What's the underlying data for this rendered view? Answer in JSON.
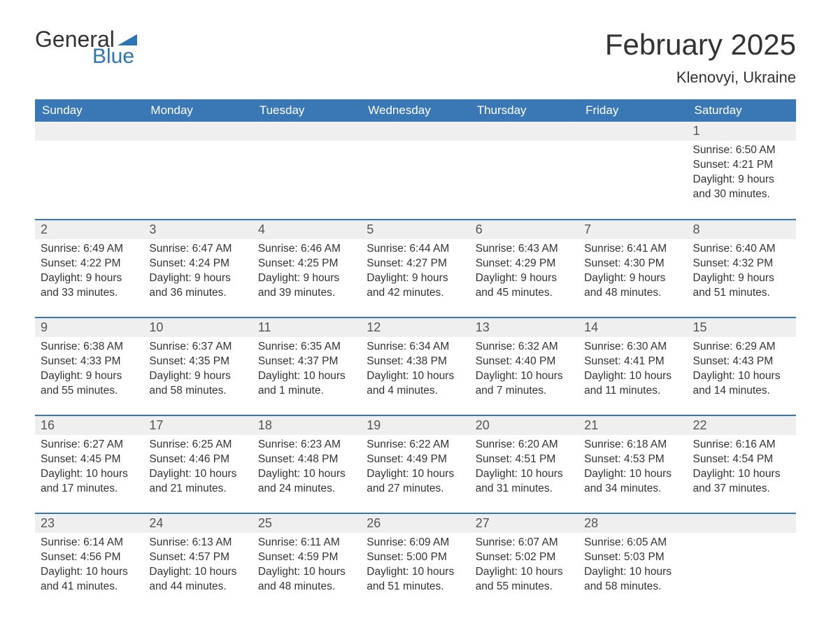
{
  "logo": {
    "text1": "General",
    "text2": "Blue",
    "triangle_color": "#2e75b6"
  },
  "title": "February 2025",
  "location": "Klenovyi, Ukraine",
  "colors": {
    "header_bg": "#3a78b5",
    "header_text": "#ffffff",
    "daynum_bg": "#efefef",
    "row_border": "#3a78b5",
    "body_text": "#333333"
  },
  "weekdays": [
    "Sunday",
    "Monday",
    "Tuesday",
    "Wednesday",
    "Thursday",
    "Friday",
    "Saturday"
  ],
  "weeks": [
    [
      null,
      null,
      null,
      null,
      null,
      null,
      {
        "n": "1",
        "sunrise": "6:50 AM",
        "sunset": "4:21 PM",
        "dl": "9 hours and 30 minutes."
      }
    ],
    [
      {
        "n": "2",
        "sunrise": "6:49 AM",
        "sunset": "4:22 PM",
        "dl": "9 hours and 33 minutes."
      },
      {
        "n": "3",
        "sunrise": "6:47 AM",
        "sunset": "4:24 PM",
        "dl": "9 hours and 36 minutes."
      },
      {
        "n": "4",
        "sunrise": "6:46 AM",
        "sunset": "4:25 PM",
        "dl": "9 hours and 39 minutes."
      },
      {
        "n": "5",
        "sunrise": "6:44 AM",
        "sunset": "4:27 PM",
        "dl": "9 hours and 42 minutes."
      },
      {
        "n": "6",
        "sunrise": "6:43 AM",
        "sunset": "4:29 PM",
        "dl": "9 hours and 45 minutes."
      },
      {
        "n": "7",
        "sunrise": "6:41 AM",
        "sunset": "4:30 PM",
        "dl": "9 hours and 48 minutes."
      },
      {
        "n": "8",
        "sunrise": "6:40 AM",
        "sunset": "4:32 PM",
        "dl": "9 hours and 51 minutes."
      }
    ],
    [
      {
        "n": "9",
        "sunrise": "6:38 AM",
        "sunset": "4:33 PM",
        "dl": "9 hours and 55 minutes."
      },
      {
        "n": "10",
        "sunrise": "6:37 AM",
        "sunset": "4:35 PM",
        "dl": "9 hours and 58 minutes."
      },
      {
        "n": "11",
        "sunrise": "6:35 AM",
        "sunset": "4:37 PM",
        "dl": "10 hours and 1 minute."
      },
      {
        "n": "12",
        "sunrise": "6:34 AM",
        "sunset": "4:38 PM",
        "dl": "10 hours and 4 minutes."
      },
      {
        "n": "13",
        "sunrise": "6:32 AM",
        "sunset": "4:40 PM",
        "dl": "10 hours and 7 minutes."
      },
      {
        "n": "14",
        "sunrise": "6:30 AM",
        "sunset": "4:41 PM",
        "dl": "10 hours and 11 minutes."
      },
      {
        "n": "15",
        "sunrise": "6:29 AM",
        "sunset": "4:43 PM",
        "dl": "10 hours and 14 minutes."
      }
    ],
    [
      {
        "n": "16",
        "sunrise": "6:27 AM",
        "sunset": "4:45 PM",
        "dl": "10 hours and 17 minutes."
      },
      {
        "n": "17",
        "sunrise": "6:25 AM",
        "sunset": "4:46 PM",
        "dl": "10 hours and 21 minutes."
      },
      {
        "n": "18",
        "sunrise": "6:23 AM",
        "sunset": "4:48 PM",
        "dl": "10 hours and 24 minutes."
      },
      {
        "n": "19",
        "sunrise": "6:22 AM",
        "sunset": "4:49 PM",
        "dl": "10 hours and 27 minutes."
      },
      {
        "n": "20",
        "sunrise": "6:20 AM",
        "sunset": "4:51 PM",
        "dl": "10 hours and 31 minutes."
      },
      {
        "n": "21",
        "sunrise": "6:18 AM",
        "sunset": "4:53 PM",
        "dl": "10 hours and 34 minutes."
      },
      {
        "n": "22",
        "sunrise": "6:16 AM",
        "sunset": "4:54 PM",
        "dl": "10 hours and 37 minutes."
      }
    ],
    [
      {
        "n": "23",
        "sunrise": "6:14 AM",
        "sunset": "4:56 PM",
        "dl": "10 hours and 41 minutes."
      },
      {
        "n": "24",
        "sunrise": "6:13 AM",
        "sunset": "4:57 PM",
        "dl": "10 hours and 44 minutes."
      },
      {
        "n": "25",
        "sunrise": "6:11 AM",
        "sunset": "4:59 PM",
        "dl": "10 hours and 48 minutes."
      },
      {
        "n": "26",
        "sunrise": "6:09 AM",
        "sunset": "5:00 PM",
        "dl": "10 hours and 51 minutes."
      },
      {
        "n": "27",
        "sunrise": "6:07 AM",
        "sunset": "5:02 PM",
        "dl": "10 hours and 55 minutes."
      },
      {
        "n": "28",
        "sunrise": "6:05 AM",
        "sunset": "5:03 PM",
        "dl": "10 hours and 58 minutes."
      },
      null
    ]
  ],
  "labels": {
    "sunrise": "Sunrise: ",
    "sunset": "Sunset: ",
    "daylight": "Daylight: "
  }
}
